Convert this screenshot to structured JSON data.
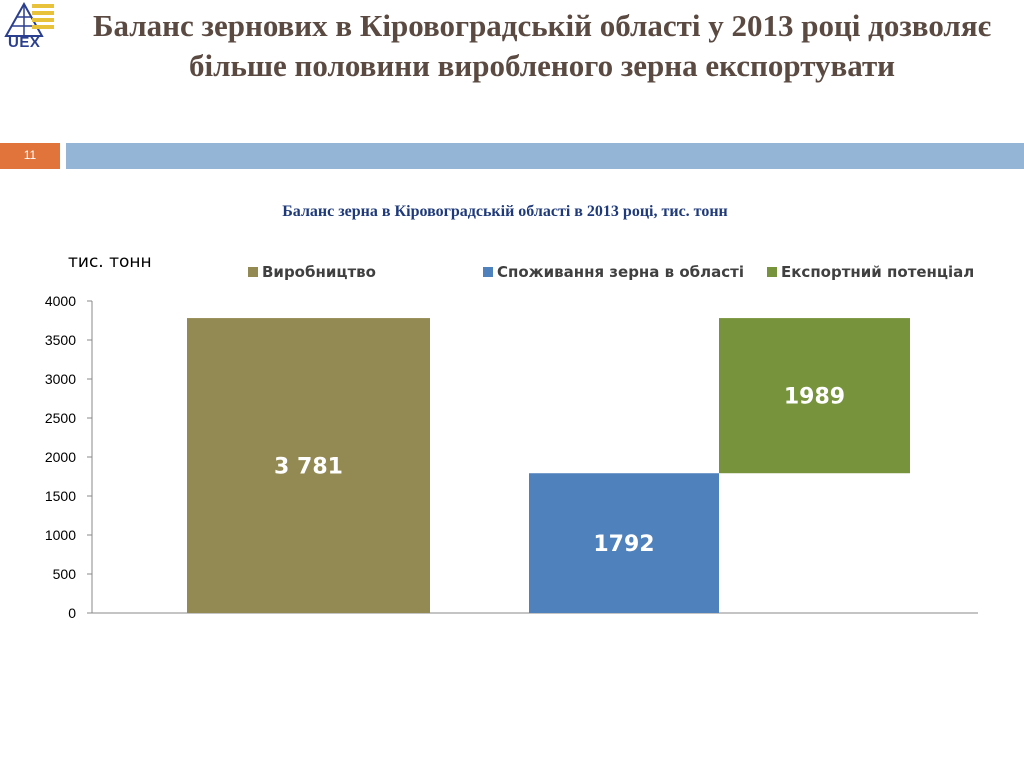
{
  "slide": {
    "logo_text": "UEX",
    "title": "Баланс зернових в Кіровоградській області у 2013 році дозволяє більше половини виробленого зерна експортувати",
    "number": "11"
  },
  "chart_data": {
    "type": "bar",
    "subtype": "waterfall",
    "title": "Баланс зерна в Кіровоградській області в 2013 році, тис. тонн",
    "ylabel": "тис. тонн",
    "xlabel": "",
    "ylim": [
      0,
      4000
    ],
    "yticks": [
      0,
      500,
      1000,
      1500,
      2000,
      2500,
      3000,
      3500,
      4000
    ],
    "grid": false,
    "legend_position": "top",
    "series": [
      {
        "name": "Виробництво",
        "color": "#938953",
        "base": 0,
        "value": 3781,
        "label": "3 781"
      },
      {
        "name": "Споживання зерна в області",
        "color": "#4f81bd",
        "base": 0,
        "value": 1792,
        "label": "1792"
      },
      {
        "name": "Експортний потенціал",
        "color": "#77933c",
        "base": 1792,
        "value": 1989,
        "label": "1989"
      }
    ]
  }
}
